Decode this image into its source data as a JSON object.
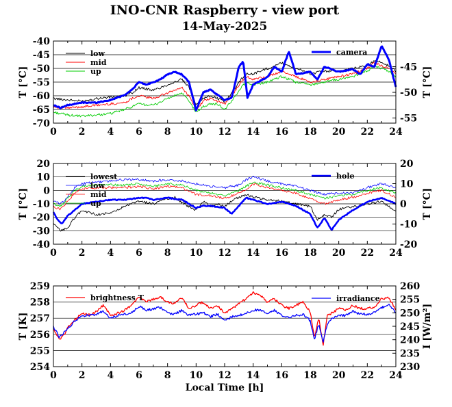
{
  "title": "INO-CNR Raspberry - view port",
  "subtitle": "14-May-2025",
  "xlabel": "Local Time [h]",
  "x_ticks": [
    "0",
    "2",
    "4",
    "6",
    "8",
    "10",
    "12",
    "14",
    "16",
    "18",
    "20",
    "22",
    "24"
  ],
  "chart_data": [
    {
      "type": "line",
      "xlim": [
        0,
        24
      ],
      "ylabel_left": "T [°C]",
      "ylim_left": [
        -70,
        -40
      ],
      "yticks_left": [
        "-40",
        "-45",
        "-50",
        "-55",
        "-60",
        "-65",
        "-70"
      ],
      "ylabel_right": "T [°C]",
      "ylim_right": [
        -56,
        -40
      ],
      "yticks_right": [
        "-45",
        "-50",
        "-55"
      ],
      "legend_left": [
        "low",
        "mid",
        "up"
      ],
      "legend_right": [
        "camera"
      ],
      "series": [
        {
          "name": "low",
          "color": "#000000",
          "axis": "left",
          "width": 0.9,
          "x": [
            0,
            1,
            2,
            3,
            4,
            5,
            5.5,
            6,
            7,
            8,
            8.5,
            9,
            9.5,
            10,
            10.5,
            11,
            11.5,
            12,
            12.5,
            13,
            13.5,
            14,
            15,
            16,
            17,
            18,
            19,
            20,
            21,
            22,
            22.5,
            23,
            23.5,
            24
          ],
          "y": [
            -61,
            -61.5,
            -62,
            -61,
            -60.5,
            -60,
            -59,
            -57,
            -58,
            -56,
            -55,
            -54,
            -57,
            -63,
            -61,
            -60,
            -61,
            -62,
            -59,
            -55,
            -52,
            -52,
            -50,
            -48,
            -50,
            -52,
            -51,
            -51,
            -50,
            -49,
            -47,
            -48,
            -49,
            -51
          ]
        },
        {
          "name": "mid",
          "color": "#ff0000",
          "axis": "left",
          "width": 0.9,
          "x": [
            0,
            1,
            2,
            3,
            4,
            5,
            5.5,
            6,
            7,
            8,
            8.5,
            9,
            9.5,
            10,
            10.5,
            11,
            11.5,
            12,
            12.5,
            13,
            13.5,
            14,
            15,
            16,
            17,
            18,
            19,
            20,
            21,
            22,
            22.5,
            23,
            23.5,
            24
          ],
          "y": [
            -64,
            -64.5,
            -64,
            -63.5,
            -63,
            -62.5,
            -61,
            -60,
            -61,
            -59,
            -58,
            -57,
            -60,
            -65,
            -62,
            -61,
            -62,
            -63,
            -60,
            -56,
            -53,
            -54,
            -53,
            -51,
            -53,
            -55,
            -54,
            -53,
            -52,
            -50,
            -48,
            -49,
            -50,
            -52
          ]
        },
        {
          "name": "up",
          "color": "#00cc00",
          "axis": "left",
          "width": 0.9,
          "x": [
            0,
            1,
            2,
            3,
            4,
            5,
            5.5,
            6,
            7,
            8,
            8.5,
            9,
            9.5,
            10,
            10.5,
            11,
            11.5,
            12,
            12.5,
            13,
            13.5,
            14,
            15,
            16,
            17,
            18,
            19,
            20,
            21,
            22,
            22.5,
            23,
            23.5,
            24
          ],
          "y": [
            -66,
            -67,
            -67.5,
            -67,
            -66.5,
            -65,
            -64,
            -63,
            -63.5,
            -61,
            -60,
            -59,
            -62,
            -66,
            -64,
            -63,
            -63,
            -65,
            -62,
            -58,
            -55,
            -56,
            -55,
            -53,
            -55,
            -56,
            -55,
            -54,
            -53,
            -51,
            -49,
            -50,
            -51,
            -53
          ]
        },
        {
          "name": "camera",
          "color": "#0000ff",
          "axis": "right",
          "width": 3,
          "x": [
            0,
            0.5,
            1,
            2,
            3,
            4,
            5,
            5.5,
            6,
            6.5,
            7,
            7.5,
            8,
            8.5,
            9,
            9.5,
            10,
            10.5,
            11,
            11.5,
            12,
            12.5,
            13,
            13.3,
            13.6,
            14,
            15,
            15.5,
            16,
            16.5,
            17,
            18,
            18.5,
            19,
            20,
            21,
            21.5,
            22,
            22.5,
            23,
            23.5,
            24
          ],
          "y": [
            -52.5,
            -53,
            -52.5,
            -52,
            -52,
            -51.5,
            -50.5,
            -49.5,
            -48,
            -48.5,
            -48,
            -47.5,
            -46.5,
            -46,
            -46.5,
            -48,
            -53.5,
            -50,
            -49.5,
            -50.5,
            -51.5,
            -51,
            -45,
            -44,
            -51,
            -48.5,
            -47,
            -45,
            -46,
            -42,
            -46.5,
            -46,
            -47.5,
            -45,
            -46,
            -45.5,
            -46.5,
            -44.5,
            -45,
            -41,
            -43.5,
            -49
          ]
        }
      ]
    },
    {
      "type": "line",
      "xlim": [
        0,
        24
      ],
      "ylabel_left": "T [°C]",
      "ylim_left": [
        -40,
        20
      ],
      "yticks_left": [
        "20",
        "10",
        "0",
        "-10",
        "-20",
        "-30",
        "-40"
      ],
      "ylabel_right": "T [°C]",
      "ylim_right": [
        -20,
        20
      ],
      "yticks_right": [
        "20",
        "10",
        "0",
        "-10",
        "-20"
      ],
      "legend_left": [
        "lowest",
        "low",
        "mid",
        "up"
      ],
      "legend_right": [
        "hole"
      ],
      "series": [
        {
          "name": "lowest",
          "color": "#000000",
          "axis": "left",
          "width": 0.9,
          "x": [
            0,
            0.5,
            1,
            1.5,
            2,
            3,
            4,
            5,
            6,
            7,
            8,
            8.5,
            9,
            10,
            10.5,
            11,
            11.5,
            12,
            12.5,
            13,
            13.5,
            14,
            15,
            16,
            17,
            18,
            18.5,
            19,
            19.5,
            20,
            21,
            22,
            23,
            23.5,
            24
          ],
          "y": [
            -25,
            -30,
            -28,
            -20,
            -15,
            -18,
            -17,
            -12,
            -8,
            -10,
            -6,
            -5,
            -9,
            -15,
            -8,
            -12,
            -10,
            -12,
            -8,
            -5,
            -3,
            -5,
            -7,
            -8,
            -10,
            -12,
            -22,
            -18,
            -20,
            -14,
            -12,
            -10,
            -8,
            -12,
            -15
          ]
        },
        {
          "name": "low",
          "color": "#0000ff",
          "axis": "left",
          "width": 0.8,
          "x": [
            0,
            0.5,
            1,
            1.5,
            2,
            3,
            4,
            5,
            6,
            7,
            8,
            9,
            10,
            11,
            12,
            13,
            13.5,
            14,
            15,
            16,
            17,
            18,
            19,
            20,
            21,
            22,
            23,
            24
          ],
          "y": [
            -8,
            -10,
            -5,
            2,
            5,
            6,
            7,
            8,
            8,
            7,
            8,
            7,
            5,
            3,
            2,
            4,
            8,
            10,
            7,
            5,
            3,
            0,
            -3,
            -2,
            -2,
            2,
            5,
            2
          ]
        },
        {
          "name": "mid",
          "color": "#ff0000",
          "axis": "left",
          "width": 0.8,
          "x": [
            0,
            0.5,
            1,
            1.5,
            2,
            3,
            4,
            5,
            6,
            7,
            8,
            9,
            10,
            11,
            12,
            13,
            13.5,
            14,
            15,
            16,
            17,
            18,
            19,
            20,
            21,
            22,
            23,
            24
          ],
          "y": [
            -12,
            -14,
            -8,
            -2,
            1,
            2,
            2,
            2,
            3,
            1,
            3,
            2,
            -3,
            -4,
            -6,
            -2,
            1,
            5,
            2,
            0,
            -2,
            -6,
            -10,
            -7,
            -5,
            -2,
            0,
            -5
          ]
        },
        {
          "name": "up",
          "color": "#00cc00",
          "axis": "left",
          "width": 0.8,
          "x": [
            0,
            0.5,
            1,
            1.5,
            2,
            3,
            4,
            5,
            6,
            7,
            8,
            9,
            10,
            11,
            12,
            13,
            13.5,
            14,
            15,
            16,
            17,
            18,
            19,
            20,
            21,
            22,
            23,
            24
          ],
          "y": [
            -10,
            -12,
            -6,
            0,
            3,
            4,
            4,
            4,
            5,
            3,
            5,
            4,
            0,
            -2,
            -4,
            0,
            3,
            6,
            4,
            2,
            0,
            -3,
            -6,
            -4,
            -3,
            0,
            2,
            -2
          ]
        },
        {
          "name": "hole",
          "color": "#0000ff",
          "axis": "right",
          "width": 2.6,
          "x": [
            0,
            0.3,
            0.6,
            1,
            1.5,
            2,
            3,
            4,
            5,
            6,
            6.5,
            7,
            8,
            9,
            10,
            10.5,
            11,
            12,
            12.5,
            13,
            13.5,
            14,
            15,
            16,
            17,
            18,
            18.5,
            19,
            19.5,
            20,
            21,
            22,
            23,
            24
          ],
          "y": [
            -4,
            -8,
            -10,
            -6,
            -3,
            0,
            1,
            2,
            2,
            3,
            3,
            2,
            3,
            2,
            -2,
            -1,
            -1,
            -2,
            -5,
            -1,
            3,
            2,
            0,
            1,
            -1,
            -5,
            -12,
            -7,
            -13,
            -8,
            -3,
            1,
            3,
            0
          ]
        }
      ]
    },
    {
      "type": "line",
      "xlim": [
        0,
        24
      ],
      "ylabel_left": "T [K]",
      "ylim_left": [
        254,
        259
      ],
      "yticks_left": [
        "259",
        "258",
        "257",
        "256",
        "255",
        "254"
      ],
      "ylabel_right": "I [W/m2]",
      "ylim_right": [
        230,
        260
      ],
      "yticks_right": [
        "260",
        "255",
        "250",
        "245",
        "240",
        "235",
        "230"
      ],
      "legend_left": [
        "brightness T"
      ],
      "legend_right": [
        "irradiance"
      ],
      "series": [
        {
          "name": "brightness T",
          "color": "#ff0000",
          "axis": "left",
          "width": 1.3,
          "x": [
            0,
            0.4,
            0.8,
            1,
            1.5,
            2,
            2.5,
            3,
            3.5,
            4,
            4.5,
            5,
            5.5,
            6,
            6.5,
            7,
            7.5,
            8,
            8.5,
            9,
            9.5,
            10,
            10.5,
            11,
            11.5,
            12,
            12.5,
            13,
            13.5,
            14,
            14.5,
            15,
            15.5,
            16,
            16.5,
            17,
            17.5,
            18,
            18.3,
            18.6,
            18.9,
            19.2,
            19.5,
            20,
            20.5,
            21,
            21.5,
            22,
            22.5,
            23,
            23.5,
            24
          ],
          "y": [
            256.3,
            255.7,
            256,
            256.4,
            256.9,
            257.3,
            257.2,
            257.4,
            257.8,
            257.2,
            257.3,
            257.5,
            257.8,
            258.3,
            258.0,
            258.2,
            258.3,
            258.0,
            257.9,
            258.3,
            257.6,
            257.8,
            258.0,
            257.6,
            257.8,
            257.3,
            257.6,
            257.9,
            258.2,
            258.6,
            258.4,
            258.0,
            258.2,
            257.8,
            257.6,
            257.8,
            258.0,
            257.4,
            255.8,
            257.0,
            255.3,
            257.2,
            257.3,
            257.6,
            257.5,
            257.8,
            257.6,
            257.6,
            257.7,
            258.2,
            258.3,
            257.5
          ]
        },
        {
          "name": "irradiance",
          "color": "#0000ff",
          "axis": "right",
          "width": 1.3,
          "x": [
            0,
            0.4,
            0.8,
            1,
            1.5,
            2,
            2.5,
            3,
            3.5,
            4,
            4.5,
            5,
            5.5,
            6,
            6.5,
            7,
            7.5,
            8,
            8.5,
            9,
            9.5,
            10,
            10.5,
            11,
            11.5,
            12,
            12.5,
            13,
            13.5,
            14,
            14.5,
            15,
            15.5,
            16,
            16.5,
            17,
            17.5,
            18,
            18.3,
            18.6,
            18.9,
            19.2,
            19.5,
            20,
            20.5,
            21,
            21.5,
            22,
            22.5,
            23,
            23.5,
            24
          ],
          "y": [
            245,
            241,
            243,
            244,
            247,
            249,
            249,
            249.5,
            250.5,
            248,
            249,
            249.5,
            250,
            252.5,
            251,
            251.5,
            252,
            250,
            249.5,
            251,
            249,
            249.5,
            250,
            248.5,
            249.5,
            247,
            248.5,
            249,
            250,
            251,
            251,
            250,
            251,
            249,
            248.5,
            249,
            249.5,
            247,
            240,
            246,
            239,
            246,
            248,
            249,
            249,
            250.5,
            249.5,
            249.5,
            250,
            252,
            253,
            250
          ]
        }
      ]
    }
  ]
}
